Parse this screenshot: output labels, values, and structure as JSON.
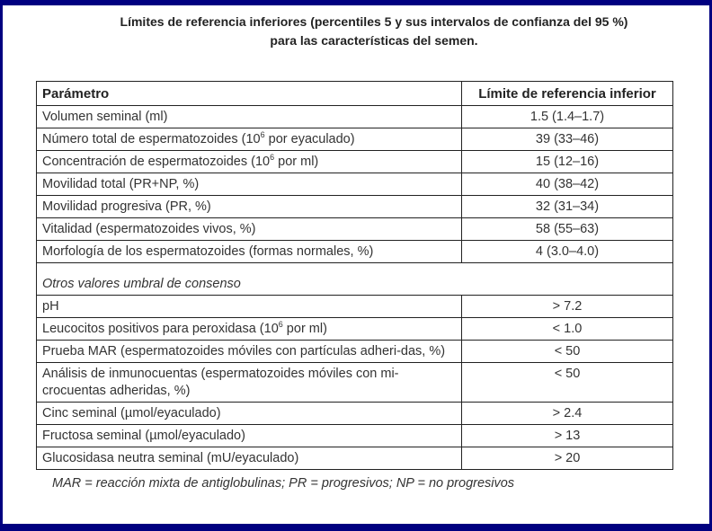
{
  "title": {
    "line1": "Límites de referencia inferiores (percentiles 5 y sus intervalos de confianza del 95 %)",
    "line2": "para las características del semen."
  },
  "table": {
    "headers": [
      "Parámetro",
      "Límite de referencia inferior"
    ],
    "rows": [
      {
        "param": "Volumen seminal (ml)",
        "value": "1.5 (1.4–1.7)"
      },
      {
        "param_pre": "Número total de espermatozoides (10",
        "sup": "6",
        "param_post": " por eyaculado)",
        "value": "39 (33–46)"
      },
      {
        "param_pre": "Concentración de espermatozoides (10",
        "sup": "6",
        "param_post": " por ml)",
        "value": "15 (12–16)"
      },
      {
        "param": "Movilidad total (PR+NP, %)",
        "value": "40 (38–42)"
      },
      {
        "param": "Movilidad progresiva (PR, %)",
        "value": "32 (31–34)"
      },
      {
        "param": "Vitalidad (espermatozoides vivos, %)",
        "value": "58 (55–63)"
      },
      {
        "param": "Morfología de los espermatozoides (formas normales, %)",
        "value": "4 (3.0–4.0)"
      }
    ],
    "section": "Otros valores umbral de consenso",
    "rows2": [
      {
        "param": "pH",
        "value": "> 7.2"
      },
      {
        "param_pre": "Leucocitos positivos para peroxidasa (10",
        "sup": "6",
        "param_post": " por ml)",
        "value": "< 1.0"
      },
      {
        "param": "Prueba MAR (espermatozoides móviles con partículas adheri-das, %)",
        "value": "< 50"
      },
      {
        "param": "Análisis de inmunocuentas (espermatozoides móviles con mi-crocuentas adheridas, %)",
        "value": "< 50"
      },
      {
        "param": "Cinc seminal (µmol/eyaculado)",
        "value": "> 2.4"
      },
      {
        "param": "Fructosa seminal (µmol/eyaculado)",
        "value": "> 13"
      },
      {
        "param": "Glucosidasa neutra seminal (mU/eyaculado)",
        "value": "> 20"
      }
    ]
  },
  "footnote": "MAR = reacción mixta de antiglobulinas; PR = progresivos; NP = no progresivos",
  "colors": {
    "frame": "#000080"
  }
}
